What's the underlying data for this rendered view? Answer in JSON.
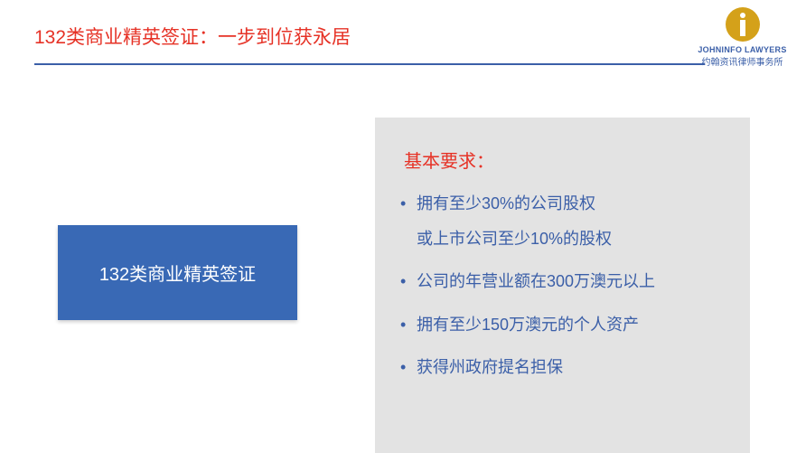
{
  "header": {
    "title": "132类商业精英签证：一步到位获永居"
  },
  "logo": {
    "name_en": "JOHNINFO LAWYERS",
    "name_cn": "约翰资讯律师事务所"
  },
  "blueBox": {
    "label": "132类商业精英签证"
  },
  "panel": {
    "title": "基本要求：",
    "items": [
      {
        "line1": "拥有至少30%的公司股权",
        "line2": "或上市公司至少10%的股权"
      },
      {
        "line1": "公司的年营业额在300万澳元以上"
      },
      {
        "line1": "拥有至少150万澳元的个人资产"
      },
      {
        "line1": "获得州政府提名担保"
      }
    ]
  },
  "colors": {
    "red": "#e63226",
    "blue": "#3b5fa8",
    "boxBlue": "#3969b5",
    "gray": "#e3e3e3",
    "gold": "#d4a11a"
  }
}
